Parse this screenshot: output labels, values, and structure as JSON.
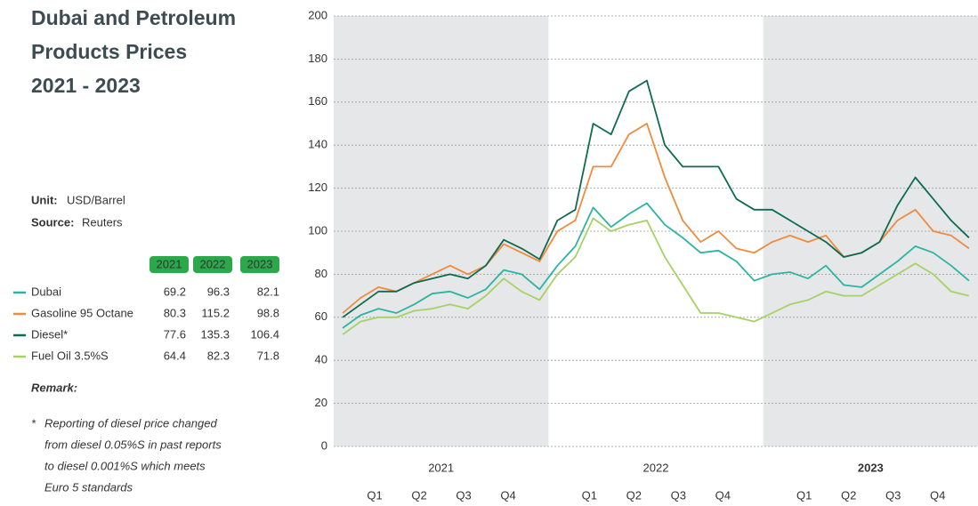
{
  "chart_data": {
    "type": "line",
    "title": [
      "Dubai and Petroleum",
      "Products Prices",
      "2021 - 2023"
    ],
    "unit_label": "Unit:",
    "unit": "USD/Barrel",
    "source_label": "Source:",
    "source": "Reuters",
    "years": [
      "2021",
      "2022",
      "2023"
    ],
    "quarters": [
      "Q1",
      "Q2",
      "Q3",
      "Q4"
    ],
    "ylim": [
      0,
      200
    ],
    "yticks": [
      0,
      20,
      40,
      60,
      80,
      100,
      120,
      140,
      160,
      180,
      200
    ],
    "grid": true,
    "series": [
      {
        "name": "Dubai",
        "color": "#2bb5a0",
        "values": [
          55,
          61,
          64,
          62,
          66,
          71,
          72,
          69,
          73,
          82,
          80,
          73,
          84,
          93,
          111,
          102,
          108,
          113,
          103,
          97,
          90,
          91,
          86,
          77,
          80,
          81,
          78,
          84,
          75,
          74,
          80,
          86,
          93,
          90,
          84,
          77
        ]
      },
      {
        "name": "Gasoline 95 Octane",
        "color": "#f08a3c",
        "values": [
          62,
          69,
          74,
          72,
          76,
          80,
          84,
          80,
          84,
          94,
          90,
          86,
          100,
          105,
          130,
          130,
          145,
          150,
          125,
          105,
          95,
          100,
          92,
          90,
          95,
          98,
          95,
          98,
          88,
          90,
          95,
          105,
          110,
          100,
          98,
          92
        ]
      },
      {
        "name": "Diesel*",
        "color": "#0e6b50",
        "values": [
          60,
          66,
          72,
          72,
          76,
          78,
          80,
          78,
          84,
          96,
          92,
          87,
          105,
          110,
          150,
          145,
          165,
          170,
          140,
          130,
          130,
          130,
          115,
          110,
          110,
          105,
          100,
          95,
          88,
          90,
          95,
          112,
          125,
          115,
          105,
          97
        ]
      },
      {
        "name": "Fuel Oil 3.5%S",
        "color": "#a6d164",
        "values": [
          52,
          58,
          60,
          60,
          63,
          64,
          66,
          64,
          70,
          78,
          72,
          68,
          80,
          88,
          106,
          100,
          103,
          105,
          88,
          75,
          62,
          62,
          60,
          58,
          62,
          66,
          68,
          72,
          70,
          70,
          75,
          80,
          85,
          80,
          72,
          70
        ]
      }
    ],
    "summary_table": {
      "columns": [
        "2021",
        "2022",
        "2023"
      ],
      "rows": [
        [
          69.2,
          96.3,
          82.1
        ],
        [
          80.3,
          115.2,
          98.8
        ],
        [
          77.6,
          135.3,
          106.4
        ],
        [
          64.4,
          82.3,
          71.8
        ]
      ]
    },
    "remark_title": "Remark:",
    "remark_marker": "*",
    "remark": [
      "Reporting of diesel price changed",
      "from diesel 0.05%S in past reports",
      "to diesel 0.001%S which meets",
      "Euro 5 standards"
    ]
  }
}
